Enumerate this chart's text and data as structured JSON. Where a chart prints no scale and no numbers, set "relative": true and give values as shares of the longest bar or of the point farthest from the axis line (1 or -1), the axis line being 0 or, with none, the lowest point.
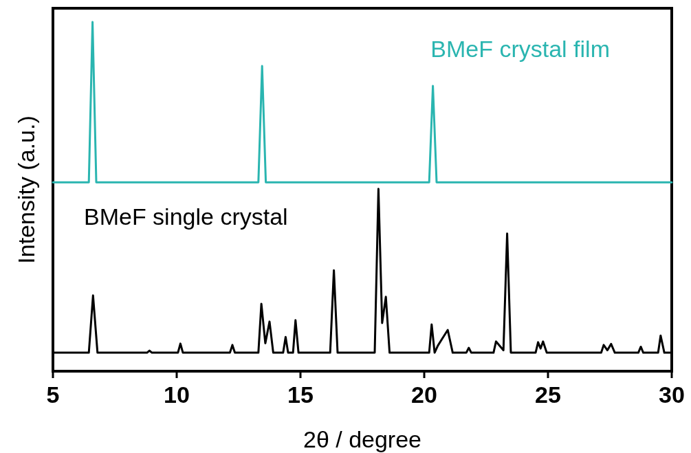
{
  "chart_data": {
    "type": "line",
    "relative": true,
    "xlabel": "2θ / degree",
    "ylabel": "Intensity (a.u.)",
    "xlim": [
      5,
      30
    ],
    "xticks": [
      5,
      10,
      15,
      20,
      25,
      30
    ],
    "series": [
      {
        "name": "BMeF crystal film",
        "color": "#2ab5b0",
        "x": [
          5,
          6.45,
          6.6,
          6.75,
          13.3,
          13.45,
          13.6,
          20.2,
          20.35,
          20.5,
          30
        ],
        "values": [
          0.541,
          0.541,
          1,
          0.541,
          0.541,
          0.874,
          0.541,
          0.541,
          0.817,
          0.541,
          0.541
        ]
      },
      {
        "name": "BMeF single crystal",
        "color": "#000000",
        "x": [
          5,
          6.45,
          6.62,
          6.8,
          8.8,
          8.9,
          9.0,
          10.05,
          10.15,
          10.25,
          12.15,
          12.25,
          12.35,
          13.3,
          13.42,
          13.58,
          13.75,
          13.9,
          14.3,
          14.4,
          14.5,
          14.7,
          14.8,
          14.92,
          16.2,
          16.35,
          16.5,
          18.0,
          18.15,
          18.3,
          18.45,
          18.6,
          20.2,
          20.3,
          20.42,
          20.55,
          20.7,
          20.95,
          21.15,
          21.7,
          21.8,
          21.9,
          22.8,
          22.9,
          23.2,
          23.35,
          23.5,
          24.5,
          24.6,
          24.7,
          24.8,
          24.95,
          27.15,
          27.25,
          27.4,
          27.55,
          27.7,
          28.65,
          28.75,
          28.85,
          29.45,
          29.55,
          29.7,
          30
        ],
        "values": [
          0.053,
          0.053,
          0.217,
          0.053,
          0.053,
          0.059,
          0.053,
          0.053,
          0.079,
          0.053,
          0.053,
          0.075,
          0.053,
          0.053,
          0.193,
          0.08,
          0.142,
          0.053,
          0.053,
          0.098,
          0.053,
          0.053,
          0.146,
          0.053,
          0.053,
          0.289,
          0.053,
          0.053,
          0.522,
          0.138,
          0.213,
          0.053,
          0.053,
          0.134,
          0.053,
          0.073,
          0.09,
          0.118,
          0.053,
          0.053,
          0.067,
          0.053,
          0.053,
          0.085,
          0.06,
          0.394,
          0.053,
          0.053,
          0.083,
          0.065,
          0.085,
          0.053,
          0.053,
          0.075,
          0.06,
          0.078,
          0.053,
          0.053,
          0.07,
          0.053,
          0.053,
          0.102,
          0.053,
          0.053
        ]
      }
    ]
  }
}
